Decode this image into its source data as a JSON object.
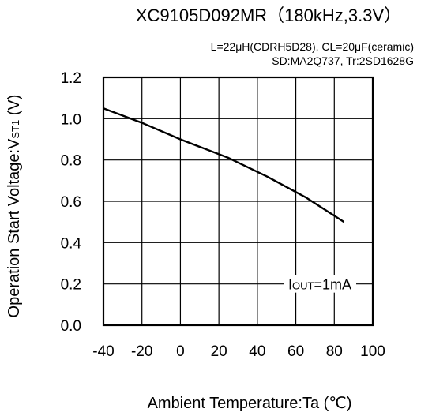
{
  "chart_data": {
    "type": "line",
    "title": "XC9105D092MR（180kHz,3.3V）",
    "conditions": [
      "L=22μH(CDRH5D28), CL=20μF(ceramic)",
      "SD:MA2Q737, Tr:2SD1628G"
    ],
    "xlabel": "Ambient Temperature:Ta (℃)",
    "ylabel": "Operation Start Voltage:VST1 (V)",
    "xlim": [
      -40,
      100
    ],
    "ylim": [
      0.0,
      1.2
    ],
    "x_ticks": [
      "-40",
      "-20",
      "0",
      "20",
      "40",
      "60",
      "80",
      "100"
    ],
    "y_ticks": [
      "0.0",
      "0.2",
      "0.4",
      "0.6",
      "0.8",
      "1.0",
      "1.2"
    ],
    "grid": true,
    "annotation": "IOUT=1mA",
    "series": [
      {
        "x": [
          -40,
          -20,
          0,
          25,
          45,
          65,
          85
        ],
        "y": [
          1.05,
          0.98,
          0.9,
          0.81,
          0.72,
          0.62,
          0.5
        ]
      }
    ]
  }
}
